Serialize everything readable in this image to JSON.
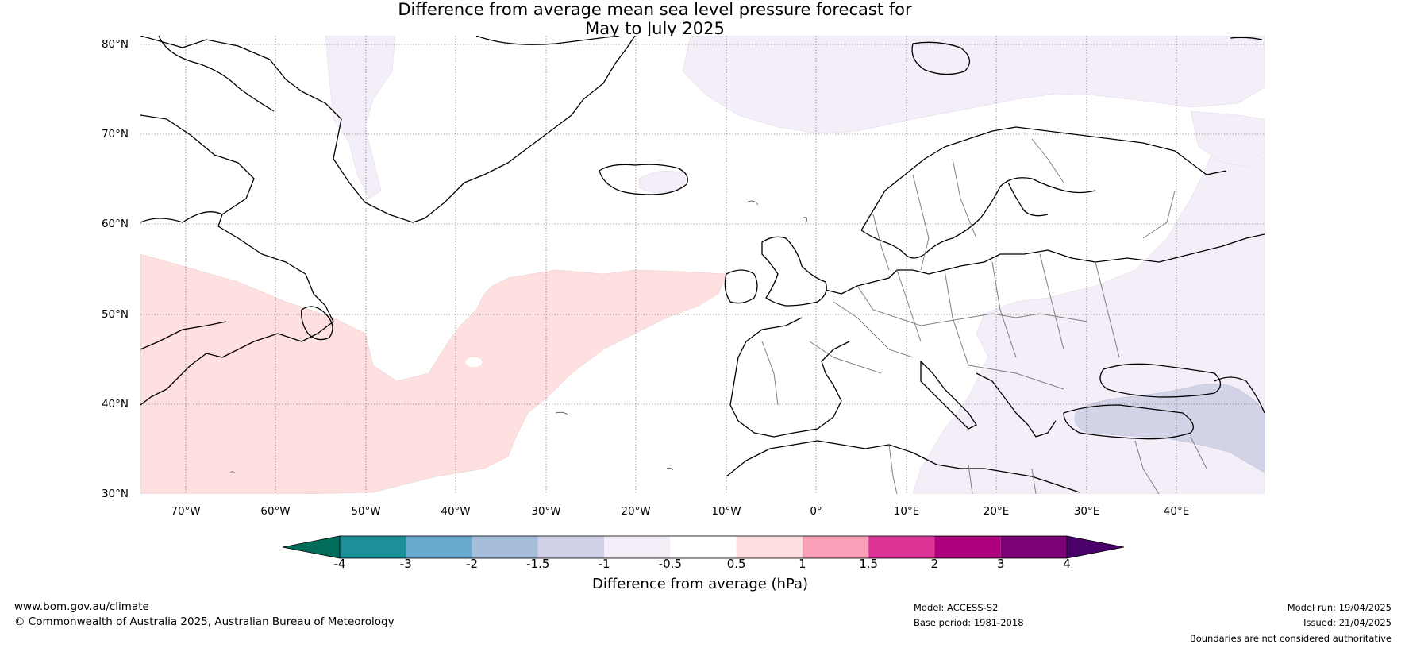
{
  "title": {
    "line1": "Difference from average mean sea level pressure forecast for",
    "line2": "May to July 2025"
  },
  "map": {
    "latitude_labels": [
      "80°N",
      "70°N",
      "60°N",
      "50°N",
      "40°N",
      "30°N"
    ],
    "longitude_labels": [
      "70°W",
      "60°W",
      "50°W",
      "40°W",
      "30°W",
      "20°W",
      "10°W",
      "0°",
      "10°E",
      "20°E",
      "30°E",
      "40°E"
    ],
    "colors": {
      "ocean_land_background": "#ffffff",
      "coastline": "#000000",
      "borders": "#808080",
      "positive_anomaly_0_5_to_1": "#fde0df",
      "negative_anomaly_minus1_to_minus0_5": "#f3eef7",
      "negative_anomaly_minus1_5_to_minus1": "#d2d3e6"
    }
  },
  "colorbar": {
    "title": "Difference from average (hPa)",
    "tick_labels": [
      "-4",
      "-3",
      "-2",
      "-1.5",
      "-1",
      "-0.5",
      "0.5",
      "1",
      "1.5",
      "2",
      "3",
      "4"
    ],
    "colors": [
      "#016c59",
      "#1c9099",
      "#67a9cf",
      "#a6bddb",
      "#d0d1e6",
      "#f3eef7",
      "#ffffff",
      "#fde0df",
      "#f9a0b8",
      "#dd3497",
      "#ae017e",
      "#7a0177",
      "#49006a"
    ]
  },
  "footer": {
    "website": "www.bom.gov.au/climate",
    "copyright": "© Commonwealth of Australia 2025, Australian Bureau of Meteorology",
    "model": "Model: ACCESS-S2",
    "base_period": "Base period: 1981-2018",
    "model_run": "Model run: 19/04/2025",
    "issued": "Issued: 21/04/2025",
    "disclaimer": "Boundaries are not considered authoritative"
  }
}
